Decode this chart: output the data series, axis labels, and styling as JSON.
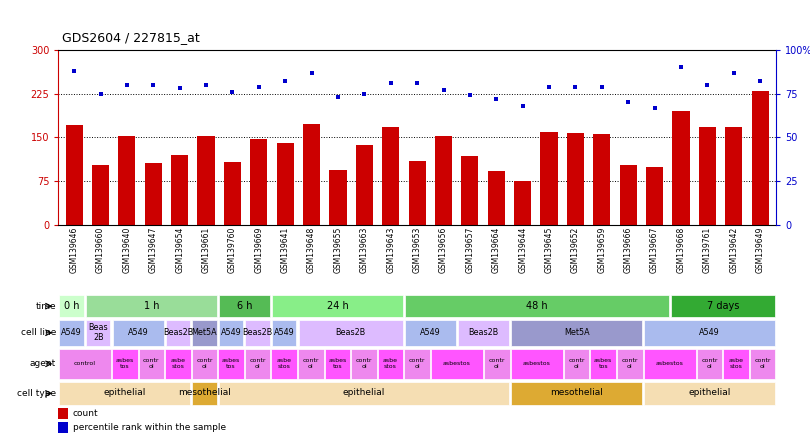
{
  "title": "GDS2604 / 227815_at",
  "samples": [
    "GSM139646",
    "GSM139660",
    "GSM139640",
    "GSM139647",
    "GSM139654",
    "GSM139661",
    "GSM139760",
    "GSM139669",
    "GSM139641",
    "GSM139648",
    "GSM139655",
    "GSM139663",
    "GSM139643",
    "GSM139653",
    "GSM139656",
    "GSM139657",
    "GSM139664",
    "GSM139644",
    "GSM139645",
    "GSM139652",
    "GSM139659",
    "GSM139666",
    "GSM139667",
    "GSM139668",
    "GSM139761",
    "GSM139642",
    "GSM139649"
  ],
  "counts": [
    172,
    103,
    152,
    107,
    120,
    153,
    108,
    148,
    140,
    173,
    95,
    137,
    168,
    110,
    152,
    118,
    93,
    76,
    160,
    157,
    155,
    102,
    100,
    195,
    168,
    168,
    230
  ],
  "percentile": [
    88,
    75,
    80,
    80,
    78,
    80,
    76,
    79,
    82,
    87,
    73,
    75,
    81,
    81,
    77,
    74,
    72,
    68,
    79,
    79,
    79,
    70,
    67,
    90,
    80,
    87,
    82
  ],
  "bar_color": "#cc0000",
  "dot_color": "#0000cc",
  "yticks_left": [
    0,
    75,
    150,
    225,
    300
  ],
  "yticks_right": [
    0,
    25,
    50,
    75,
    100
  ],
  "hlines": [
    75,
    150,
    225
  ],
  "time_segments": [
    {
      "label": "0 h",
      "span": [
        0,
        1
      ],
      "color": "#ccffcc"
    },
    {
      "label": "1 h",
      "span": [
        1,
        6
      ],
      "color": "#99dd99"
    },
    {
      "label": "6 h",
      "span": [
        6,
        8
      ],
      "color": "#55bb55"
    },
    {
      "label": "24 h",
      "span": [
        8,
        13
      ],
      "color": "#88ee88"
    },
    {
      "label": "48 h",
      "span": [
        13,
        23
      ],
      "color": "#66cc66"
    },
    {
      "label": "7 days",
      "span": [
        23,
        27
      ],
      "color": "#33aa33"
    }
  ],
  "cell_line_segments": [
    {
      "label": "A549",
      "span": [
        0,
        1
      ],
      "color": "#aabbee"
    },
    {
      "label": "Beas\n2B",
      "span": [
        1,
        2
      ],
      "color": "#ddbbff"
    },
    {
      "label": "A549",
      "span": [
        2,
        4
      ],
      "color": "#aabbee"
    },
    {
      "label": "Beas2B",
      "span": [
        4,
        5
      ],
      "color": "#ddbbff"
    },
    {
      "label": "Met5A",
      "span": [
        5,
        6
      ],
      "color": "#9999cc"
    },
    {
      "label": "A549",
      "span": [
        6,
        7
      ],
      "color": "#aabbee"
    },
    {
      "label": "Beas2B",
      "span": [
        7,
        8
      ],
      "color": "#ddbbff"
    },
    {
      "label": "A549",
      "span": [
        8,
        9
      ],
      "color": "#aabbee"
    },
    {
      "label": "Beas2B",
      "span": [
        9,
        13
      ],
      "color": "#ddbbff"
    },
    {
      "label": "A549",
      "span": [
        13,
        15
      ],
      "color": "#aabbee"
    },
    {
      "label": "Beas2B",
      "span": [
        15,
        17
      ],
      "color": "#ddbbff"
    },
    {
      "label": "Met5A",
      "span": [
        17,
        22
      ],
      "color": "#9999cc"
    },
    {
      "label": "A549",
      "span": [
        22,
        27
      ],
      "color": "#aabbee"
    }
  ],
  "agent_segments": [
    {
      "label": "control",
      "span": [
        0,
        2
      ],
      "color": "#ee88ee"
    },
    {
      "label": "asbes\ntos",
      "span": [
        2,
        3
      ],
      "color": "#ff55ff"
    },
    {
      "label": "contr\nol",
      "span": [
        3,
        4
      ],
      "color": "#ee88ee"
    },
    {
      "label": "asbe\nstos",
      "span": [
        4,
        5
      ],
      "color": "#ff55ff"
    },
    {
      "label": "contr\nol",
      "span": [
        5,
        6
      ],
      "color": "#ee88ee"
    },
    {
      "label": "asbes\ntos",
      "span": [
        6,
        7
      ],
      "color": "#ff55ff"
    },
    {
      "label": "contr\nol",
      "span": [
        7,
        8
      ],
      "color": "#ee88ee"
    },
    {
      "label": "asbe\nstos",
      "span": [
        8,
        9
      ],
      "color": "#ff55ff"
    },
    {
      "label": "contr\nol",
      "span": [
        9,
        10
      ],
      "color": "#ee88ee"
    },
    {
      "label": "asbes\ntos",
      "span": [
        10,
        11
      ],
      "color": "#ff55ff"
    },
    {
      "label": "contr\nol",
      "span": [
        11,
        12
      ],
      "color": "#ee88ee"
    },
    {
      "label": "asbe\nstos",
      "span": [
        12,
        13
      ],
      "color": "#ff55ff"
    },
    {
      "label": "contr\nol",
      "span": [
        13,
        14
      ],
      "color": "#ee88ee"
    },
    {
      "label": "asbestos",
      "span": [
        14,
        16
      ],
      "color": "#ff55ff"
    },
    {
      "label": "contr\nol",
      "span": [
        16,
        17
      ],
      "color": "#ee88ee"
    },
    {
      "label": "asbestos",
      "span": [
        17,
        19
      ],
      "color": "#ff55ff"
    },
    {
      "label": "contr\nol",
      "span": [
        19,
        20
      ],
      "color": "#ee88ee"
    },
    {
      "label": "asbes\ntos",
      "span": [
        20,
        21
      ],
      "color": "#ff55ff"
    },
    {
      "label": "contr\nol",
      "span": [
        21,
        22
      ],
      "color": "#ee88ee"
    },
    {
      "label": "asbestos",
      "span": [
        22,
        24
      ],
      "color": "#ff55ff"
    },
    {
      "label": "contr\nol",
      "span": [
        24,
        25
      ],
      "color": "#ee88ee"
    },
    {
      "label": "asbe\nstos",
      "span": [
        25,
        26
      ],
      "color": "#ff55ff"
    },
    {
      "label": "contr\nol",
      "span": [
        26,
        27
      ],
      "color": "#ee88ee"
    }
  ],
  "cell_type_segments": [
    {
      "label": "epithelial",
      "span": [
        0,
        5
      ],
      "color": "#f5deb3"
    },
    {
      "label": "mesothelial",
      "span": [
        5,
        6
      ],
      "color": "#ddaa33"
    },
    {
      "label": "epithelial",
      "span": [
        6,
        17
      ],
      "color": "#f5deb3"
    },
    {
      "label": "mesothelial",
      "span": [
        17,
        22
      ],
      "color": "#ddaa33"
    },
    {
      "label": "epithelial",
      "span": [
        22,
        27
      ],
      "color": "#f5deb3"
    }
  ]
}
